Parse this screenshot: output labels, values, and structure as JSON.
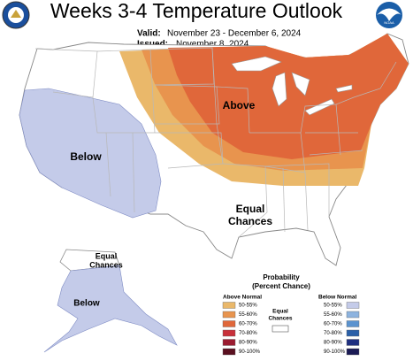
{
  "header": {
    "title": "Weeks 3-4 Temperature Outlook",
    "valid_label": "Valid:",
    "valid": "November 23 - December 6, 2024",
    "issued_label": "Issued:",
    "issued": "November 8, 2024",
    "noaa_logo": "NOAA"
  },
  "map": {
    "above": "Above",
    "below": "Below",
    "equal_chances": [
      "Equal",
      "Chances"
    ],
    "alaska_equal_chances": [
      "Equal",
      "Chances"
    ],
    "alaska_below": "Below"
  },
  "legend": {
    "title": "Probability",
    "subtitle": "(Percent Chance)",
    "equal_chances": [
      "Equal",
      "Chances"
    ],
    "above": {
      "header": "Above Normal",
      "items": [
        {
          "label": "50-55%",
          "color": "#eab86a"
        },
        {
          "label": "55-60%",
          "color": "#e8944e"
        },
        {
          "label": "60-70%",
          "color": "#e0673a"
        },
        {
          "label": "70-80%",
          "color": "#c8303a"
        },
        {
          "label": "80-90%",
          "color": "#9b1b30"
        },
        {
          "label": "90-100%",
          "color": "#5a1020"
        }
      ]
    },
    "below": {
      "header": "Below Normal",
      "items": [
        {
          "label": "50-55%",
          "color": "#c4cbe9"
        },
        {
          "label": "55-60%",
          "color": "#8db3df"
        },
        {
          "label": "60-70%",
          "color": "#5b93cf"
        },
        {
          "label": "70-80%",
          "color": "#2a5fa8"
        },
        {
          "label": "80-90%",
          "color": "#1e2f80"
        },
        {
          "label": "90-100%",
          "color": "#1b1b55"
        }
      ]
    }
  }
}
